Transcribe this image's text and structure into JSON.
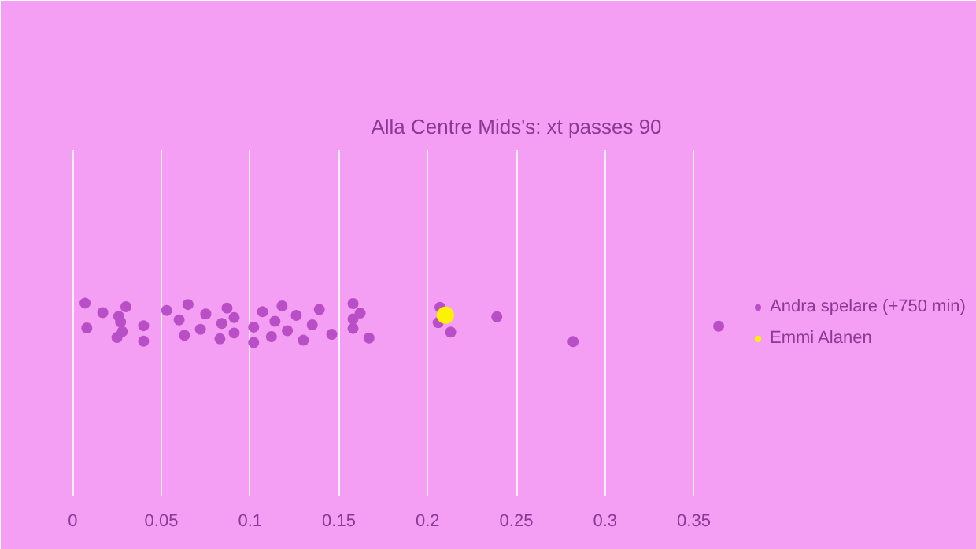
{
  "chart_data": {
    "type": "scatter",
    "subtitle": "Alla Centre Mids's: xt passes 90",
    "orientation": "horizontal",
    "categories": [
      null
    ],
    "xlim": [
      -0.005,
      0.505
    ],
    "xticks": [
      0,
      0.05,
      0.1,
      0.15,
      0.2,
      0.25,
      0.3,
      0.35
    ],
    "grid": "x",
    "legend": "right",
    "marker": "circle",
    "series": [
      {
        "name": "Andra spelare (+750 min)",
        "color": "#b94fc6",
        "x": [
          null,
          null,
          null,
          null,
          null,
          null,
          null,
          null,
          null,
          null,
          null,
          null,
          null,
          null,
          null,
          null,
          null,
          null,
          null,
          null,
          null,
          null,
          null,
          null,
          null,
          null,
          null,
          null,
          null,
          null,
          null,
          null,
          null,
          null,
          null,
          null,
          null,
          null,
          null,
          null,
          null,
          null,
          null,
          null
        ],
        "values": [
          0.007,
          0.008,
          0.017,
          0.025,
          0.027,
          0.03,
          0.028,
          0.026,
          0.04,
          0.04,
          0.053,
          0.063,
          0.06,
          0.065,
          0.072,
          0.075,
          0.083,
          0.084,
          0.087,
          0.091,
          0.091,
          0.102,
          0.102,
          0.107,
          0.112,
          0.114,
          0.118,
          0.121,
          0.126,
          0.13,
          0.135,
          0.139,
          0.146,
          0.158,
          0.158,
          0.158,
          0.162,
          0.167,
          0.206,
          0.207,
          0.213,
          0.239,
          0.282,
          0.364
        ]
      },
      {
        "name": "Emmi Alanen",
        "color": "#fff200",
        "x": [
          null
        ],
        "values": [
          0.21
        ]
      }
    ]
  }
}
